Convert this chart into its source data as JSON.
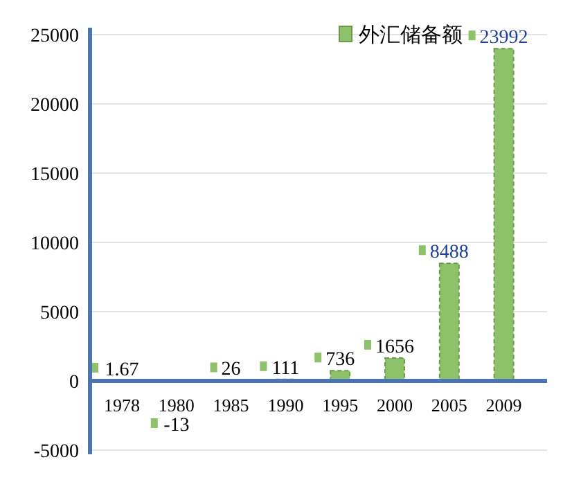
{
  "chart_data": {
    "type": "bar",
    "categories": [
      "1978",
      "1980",
      "1985",
      "1990",
      "1995",
      "2000",
      "2005",
      "2009"
    ],
    "series": [
      {
        "name": "外汇储备额",
        "color": "#8dc26b",
        "values": [
          1.67,
          -13,
          26,
          111,
          736,
          1656,
          8488,
          23992
        ]
      }
    ],
    "ylim": [
      -5000,
      25000
    ],
    "yticks": [
      -5000,
      0,
      5000,
      10000,
      15000,
      20000,
      25000
    ],
    "grid": "y",
    "legend": "top right",
    "data_labels": true
  }
}
